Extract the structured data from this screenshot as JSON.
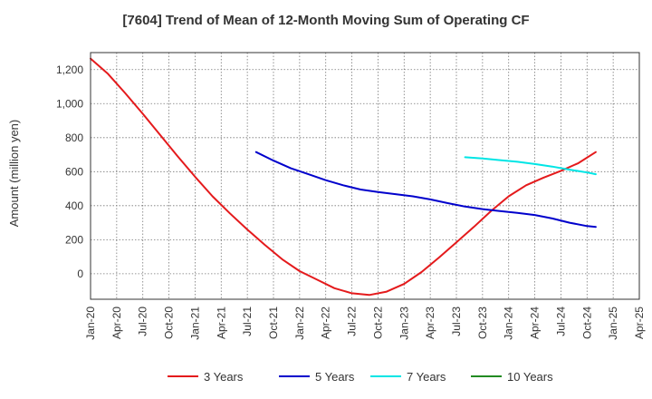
{
  "chart_data": {
    "type": "line",
    "title": "[7604]  Trend of Mean of 12-Month Moving Sum of Operating CF",
    "xlabel": "",
    "ylabel": "Amount (million yen)",
    "ylim": [
      -150,
      1300
    ],
    "yticks": [
      0,
      200,
      400,
      600,
      800,
      1000,
      1200
    ],
    "ytick_labels": [
      "0",
      "200",
      "400",
      "600",
      "800",
      "1,000",
      "1,200"
    ],
    "x_tick_labels": [
      "Jan-20",
      "Apr-20",
      "Jul-20",
      "Oct-20",
      "Jan-21",
      "Apr-21",
      "Jul-21",
      "Oct-21",
      "Jan-22",
      "Apr-22",
      "Jul-22",
      "Oct-22",
      "Jan-23",
      "Apr-23",
      "Jul-23",
      "Oct-23",
      "Jan-24",
      "Apr-24",
      "Jul-24",
      "Oct-24",
      "Jan-25",
      "Apr-25"
    ],
    "x_start": "Jan-20",
    "x_range_months": 63,
    "grid": true,
    "legend_position": "bottom",
    "series": [
      {
        "name": "3 Years",
        "color": "#e41a1c",
        "x_months": [
          0,
          2,
          4,
          6,
          8,
          10,
          12,
          14,
          16,
          18,
          20,
          22,
          24,
          26,
          28,
          30,
          32,
          34,
          36,
          38,
          40,
          42,
          44,
          46,
          48,
          50,
          52,
          54,
          56,
          58
        ],
        "values": [
          1265,
          1175,
          1060,
          940,
          815,
          690,
          570,
          455,
          355,
          260,
          170,
          85,
          15,
          -35,
          -85,
          -115,
          -125,
          -105,
          -60,
          10,
          95,
          185,
          275,
          370,
          455,
          520,
          565,
          605,
          650,
          715
        ]
      },
      {
        "name": "5 Years",
        "color": "#0000cc",
        "x_months": [
          19,
          21,
          23,
          25,
          27,
          29,
          31,
          33,
          35,
          37,
          39,
          41,
          43,
          45,
          47,
          49,
          51,
          53,
          55,
          57,
          58
        ],
        "values": [
          715,
          665,
          620,
          585,
          550,
          520,
          495,
          480,
          468,
          455,
          437,
          415,
          395,
          380,
          368,
          358,
          345,
          325,
          300,
          280,
          275
        ]
      },
      {
        "name": "7 Years",
        "color": "#00e5e5",
        "x_months": [
          43,
          45,
          47,
          49,
          51,
          53,
          55,
          57,
          58
        ],
        "values": [
          685,
          678,
          668,
          658,
          645,
          630,
          612,
          595,
          585
        ]
      },
      {
        "name": "10 Years",
        "color": "#228b22",
        "x_months": [],
        "values": []
      }
    ]
  }
}
